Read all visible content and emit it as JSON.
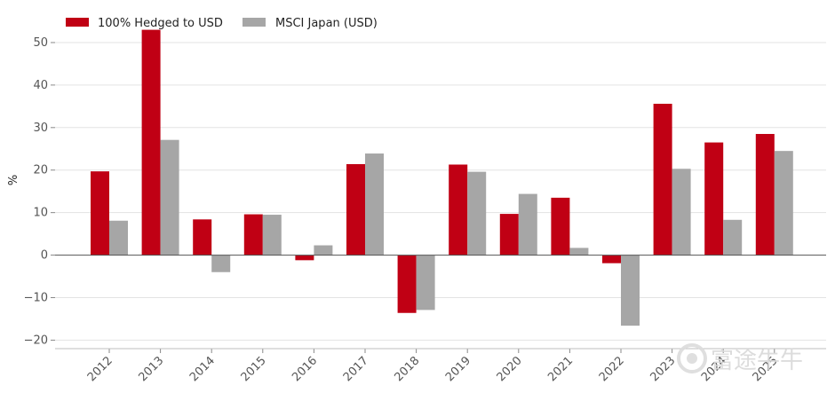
{
  "chart_data": {
    "type": "bar",
    "categories": [
      "2012",
      "2013",
      "2014",
      "2015",
      "2016",
      "2017",
      "2018",
      "2019",
      "2020",
      "2021",
      "2022",
      "2023",
      "2024",
      "2025"
    ],
    "series": [
      {
        "name": "100% Hedged to USD",
        "color": "#c00014",
        "values": [
          19.7,
          53.0,
          8.4,
          9.6,
          -1.2,
          21.4,
          -13.6,
          21.3,
          9.7,
          13.5,
          -1.9,
          35.6,
          26.5,
          28.5
        ]
      },
      {
        "name": "MSCI Japan (USD)",
        "color": "#a6a6a6",
        "values": [
          8.1,
          27.1,
          -4.0,
          9.5,
          2.3,
          23.9,
          -12.9,
          19.6,
          14.4,
          1.7,
          -16.6,
          20.3,
          8.3,
          24.5
        ]
      }
    ],
    "ylabel": "%",
    "ylim": [
      -22,
      55
    ],
    "yticks": [
      -20,
      -10,
      0,
      10,
      20,
      30,
      40,
      50
    ],
    "ytick_labels": [
      "−20",
      "−10",
      "0",
      "10",
      "20",
      "30",
      "40",
      "50"
    ],
    "grid": true,
    "legend_position": "top-left"
  },
  "watermark": {
    "text": "富途牛牛"
  }
}
